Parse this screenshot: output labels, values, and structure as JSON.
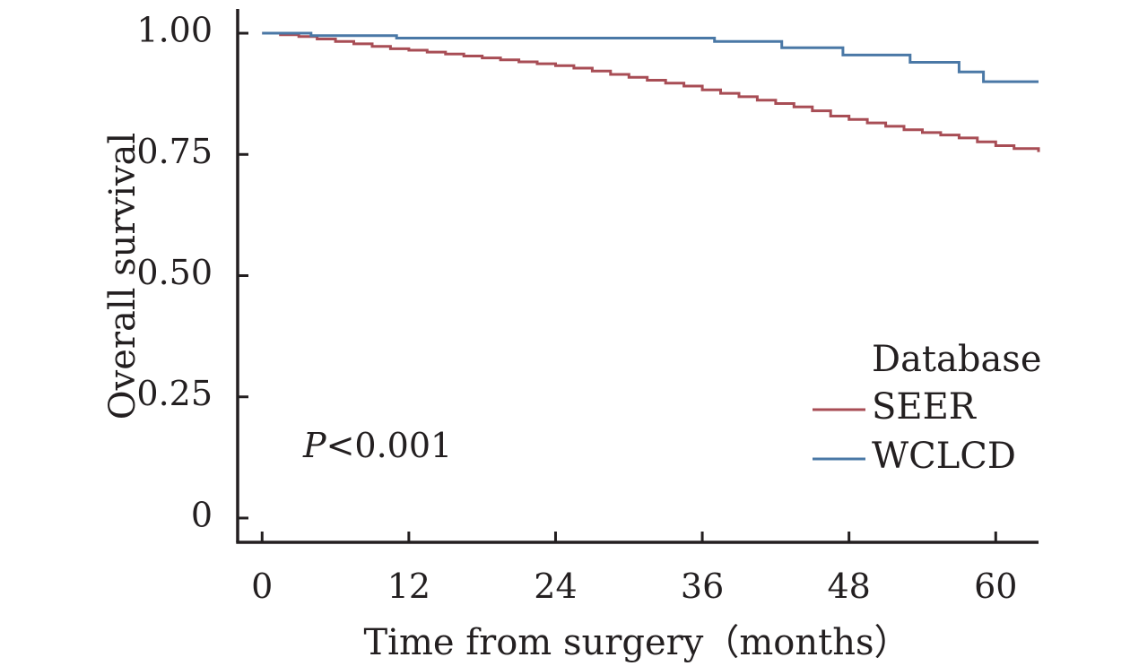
{
  "chart_data": {
    "type": "line",
    "xlabel": "Time from surgery（months）",
    "ylabel": "Overall survival",
    "xlim": [
      -2,
      63.5
    ],
    "ylim": [
      -0.05,
      1.05
    ],
    "x_ticks": [
      {
        "value": 0,
        "label": "0"
      },
      {
        "value": 12,
        "label": "12"
      },
      {
        "value": 24,
        "label": "24"
      },
      {
        "value": 36,
        "label": "36"
      },
      {
        "value": 48,
        "label": "48"
      },
      {
        "value": 60,
        "label": "60"
      }
    ],
    "y_ticks": [
      {
        "value": 0,
        "label": "0"
      },
      {
        "value": 0.25,
        "label": "0.25"
      },
      {
        "value": 0.5,
        "label": "0.50"
      },
      {
        "value": 0.75,
        "label": "0.75"
      },
      {
        "value": 1.0,
        "label": "1.00"
      }
    ],
    "grid": false,
    "legend": {
      "title": "Database",
      "placement": "right"
    },
    "annotation": {
      "italic": "P",
      "text": "<0.001"
    },
    "series": [
      {
        "name": "SEER",
        "color": "#a84d55",
        "step": true,
        "x": [
          0,
          1.5,
          3,
          4.5,
          6,
          7.5,
          9,
          10.5,
          12,
          13.5,
          15,
          16.5,
          18,
          19.5,
          21,
          22.5,
          24,
          25.5,
          27,
          28.5,
          30,
          31.5,
          33,
          34.5,
          36,
          37.5,
          39,
          40.5,
          42,
          43.5,
          45,
          46.5,
          48,
          49.5,
          51,
          52.5,
          54,
          55.5,
          57,
          58.5,
          60,
          61.5,
          63.5
        ],
        "y": [
          1.0,
          0.997,
          0.993,
          0.988,
          0.983,
          0.978,
          0.973,
          0.968,
          0.965,
          0.961,
          0.957,
          0.953,
          0.949,
          0.945,
          0.941,
          0.937,
          0.933,
          0.928,
          0.922,
          0.915,
          0.909,
          0.903,
          0.897,
          0.891,
          0.883,
          0.876,
          0.869,
          0.862,
          0.855,
          0.848,
          0.84,
          0.829,
          0.822,
          0.815,
          0.808,
          0.801,
          0.795,
          0.79,
          0.784,
          0.776,
          0.768,
          0.762,
          0.755
        ]
      },
      {
        "name": "WCLCD",
        "color": "#4a78a6",
        "step": true,
        "x": [
          0,
          4,
          11,
          37,
          42.5,
          47.5,
          53,
          57,
          59,
          63.5
        ],
        "y": [
          1.0,
          0.995,
          0.99,
          0.983,
          0.97,
          0.955,
          0.94,
          0.92,
          0.9,
          0.9
        ]
      }
    ]
  }
}
